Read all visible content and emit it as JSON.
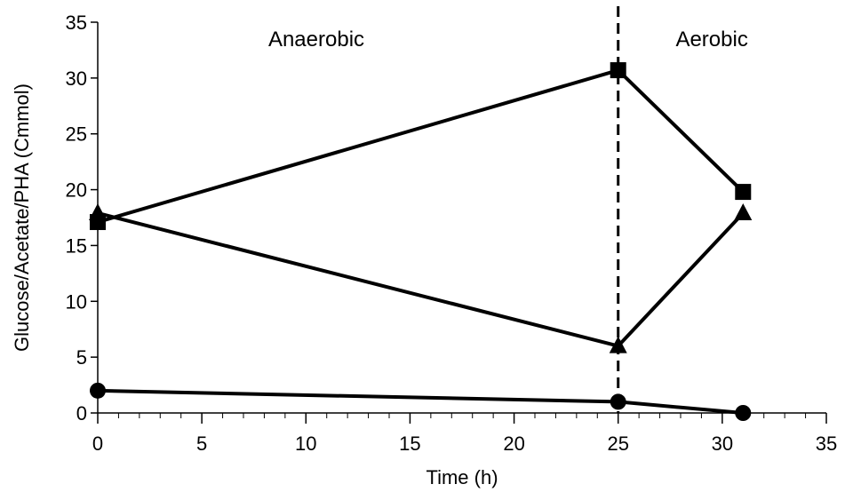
{
  "chart_data": {
    "type": "line",
    "title": "",
    "xlabel": "Time (h)",
    "ylabel": "Glucose/Acetate/PHA (Cmmol)",
    "xlim": [
      0,
      35
    ],
    "ylim": [
      0,
      35
    ],
    "x_ticks": [
      0,
      5,
      10,
      15,
      20,
      25,
      30,
      35
    ],
    "y_ticks": [
      0,
      5,
      10,
      15,
      20,
      25,
      30,
      35
    ],
    "x_minor_step": 1,
    "grid": false,
    "legend": "none",
    "line_color": "#000000",
    "series": [
      {
        "marker": "square",
        "x": [
          0,
          25,
          31
        ],
        "values": [
          17.1,
          30.7,
          19.8
        ]
      },
      {
        "marker": "triangle",
        "x": [
          0,
          25,
          31
        ],
        "values": [
          17.9,
          6.0,
          17.9
        ]
      },
      {
        "marker": "circle",
        "x": [
          0,
          25,
          31
        ],
        "values": [
          2.0,
          1.0,
          0.0
        ]
      }
    ],
    "phase_divider": {
      "x": 25,
      "style": "dashed"
    },
    "annotations": [
      {
        "text": "Anaerobic",
        "x": 10.5,
        "y": 33.5
      },
      {
        "text": "Aerobic",
        "x": 29.5,
        "y": 33.5
      }
    ]
  }
}
